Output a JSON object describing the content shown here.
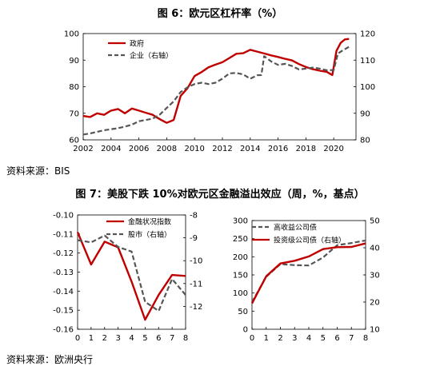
{
  "figure6": {
    "title": "图 6：欧元区杠杆率（%）",
    "source": "资料来源：BIS",
    "chart_data": {
      "type": "line",
      "xlim": [
        2002,
        2021.6
      ],
      "ylim_left": [
        60,
        100
      ],
      "ylim_right": [
        80,
        120
      ],
      "x_ticks": [
        2002,
        2004,
        2006,
        2008,
        2010,
        2012,
        2014,
        2016,
        2018,
        2020
      ],
      "y_ticks_left": [
        60,
        70,
        80,
        90,
        100
      ],
      "y_ticks_right": [
        80,
        90,
        100,
        110,
        120
      ],
      "legend": "top-left",
      "series": [
        {
          "name": "政府",
          "axis": "left",
          "color": "#c00000",
          "style": "solid",
          "x": [
            2002,
            2002.5,
            2003,
            2003.5,
            2004,
            2004.5,
            2005,
            2005.5,
            2006,
            2006.5,
            2007,
            2007.3,
            2007.6,
            2008,
            2008.5,
            2009,
            2009.5,
            2010,
            2010.5,
            2011,
            2011.5,
            2012,
            2012.5,
            2013,
            2013.5,
            2014,
            2014.5,
            2015,
            2015.5,
            2016,
            2016.5,
            2017,
            2017.5,
            2018,
            2018.5,
            2019,
            2019.5,
            2019.9,
            2020.2,
            2020.5,
            2020.8,
            2021.1
          ],
          "values": [
            69,
            68.6,
            70,
            69.4,
            71,
            71.6,
            70,
            71.8,
            71,
            70.2,
            69.4,
            68.4,
            67.5,
            66.4,
            67.5,
            76.5,
            79.5,
            84,
            85.5,
            87.3,
            88.3,
            89.2,
            90.8,
            92.4,
            92.6,
            93.9,
            93.2,
            92.5,
            91.8,
            91.2,
            90.5,
            89.9,
            88.5,
            87.4,
            86.6,
            86.0,
            85.6,
            84.4,
            93.5,
            96.5,
            97.8,
            98
          ]
        },
        {
          "name": "企业（右轴）",
          "axis": "right",
          "color": "#555555",
          "style": "dashed",
          "x": [
            2002,
            2002.5,
            2003,
            2003.5,
            2004,
            2004.5,
            2005,
            2005.5,
            2006,
            2006.5,
            2007,
            2007.5,
            2008,
            2008.5,
            2009,
            2009.5,
            2010,
            2010.5,
            2011,
            2011.5,
            2012,
            2012.5,
            2013,
            2013.5,
            2014,
            2014.5,
            2014.8,
            2015,
            2015.5,
            2016,
            2016.5,
            2017,
            2017.5,
            2018,
            2018.5,
            2019,
            2019.5,
            2020,
            2020.3,
            2020.6,
            2021.1
          ],
          "values": [
            82,
            82.4,
            83,
            83.6,
            84,
            84.4,
            85,
            85.7,
            87,
            87.5,
            88,
            89.5,
            92,
            94.5,
            98,
            99.8,
            101,
            101.5,
            101,
            101.5,
            103,
            105,
            105.2,
            104.6,
            103,
            104.3,
            104.4,
            111.5,
            109.5,
            108.2,
            108.6,
            107.8,
            106.5,
            106.8,
            107.2,
            106.8,
            106.2,
            106.3,
            112.5,
            113.5,
            115
          ]
        }
      ]
    }
  },
  "figure7": {
    "title": "图 7：美股下跌 10%对欧元区金融溢出效应（周，%，基点）",
    "source": "资料来源：欧洲央行",
    "left_chart": {
      "chart_data": {
        "type": "line",
        "x": [
          0,
          1,
          2,
          3,
          4,
          5,
          6,
          7,
          8
        ],
        "x_ticks": [
          0,
          1,
          2,
          3,
          4,
          5,
          6,
          7,
          8
        ],
        "xlim": [
          0,
          8
        ],
        "ylim_left": [
          -0.16,
          -0.1
        ],
        "ylim_right": [
          -13,
          -8
        ],
        "y_ticks_left": [
          -0.1,
          -0.11,
          -0.12,
          -0.13,
          -0.14,
          -0.15,
          -0.16
        ],
        "y_ticks_left_labels": [
          "-0.10",
          "-0.11",
          "-0.12",
          "-0.13",
          "-0.14",
          "-0.15",
          "-0.16"
        ],
        "y_ticks_right": [
          -8,
          -9,
          -10,
          -11,
          -12
        ],
        "legend": "top-right",
        "series": [
          {
            "name": "金融状况指数",
            "axis": "left",
            "color": "#c00000",
            "style": "solid",
            "values": [
              -0.109,
              -0.126,
              -0.114,
              -0.117,
              -0.135,
              -0.155,
              -0.142,
              -0.1315,
              -0.132
            ]
          },
          {
            "name": "股市（右轴）",
            "axis": "right",
            "color": "#555555",
            "style": "dashed",
            "values": [
              -9.1,
              -9.2,
              -8.9,
              -9.4,
              -9.6,
              -11.8,
              -12.2,
              -10.8,
              -11.5
            ]
          }
        ]
      }
    },
    "right_chart": {
      "chart_data": {
        "type": "line",
        "x": [
          0,
          1,
          2,
          3,
          4,
          5,
          6,
          7,
          8
        ],
        "x_ticks": [
          0,
          1,
          2,
          3,
          4,
          5,
          6,
          7,
          8
        ],
        "xlim": [
          0,
          8
        ],
        "ylim_left": [
          0,
          300
        ],
        "ylim_right": [
          10,
          50
        ],
        "y_ticks_left": [
          0,
          50,
          100,
          150,
          200,
          250,
          300
        ],
        "y_ticks_right": [
          10,
          20,
          30,
          40,
          50
        ],
        "legend": "top-left",
        "series": [
          {
            "name": "高收益公司债",
            "axis": "left",
            "color": "#555555",
            "style": "dashed",
            "values": [
              75,
              145,
              180,
              177,
              176,
              198,
              232,
              238,
              245
            ]
          },
          {
            "name": "投资级公司债（右轴）",
            "axis": "right",
            "color": "#c00000",
            "style": "solid",
            "values": [
              19.5,
              29.5,
              34.2,
              35.2,
              36.8,
              39.5,
              40.2,
              40.3,
              41.6
            ]
          }
        ]
      }
    }
  }
}
